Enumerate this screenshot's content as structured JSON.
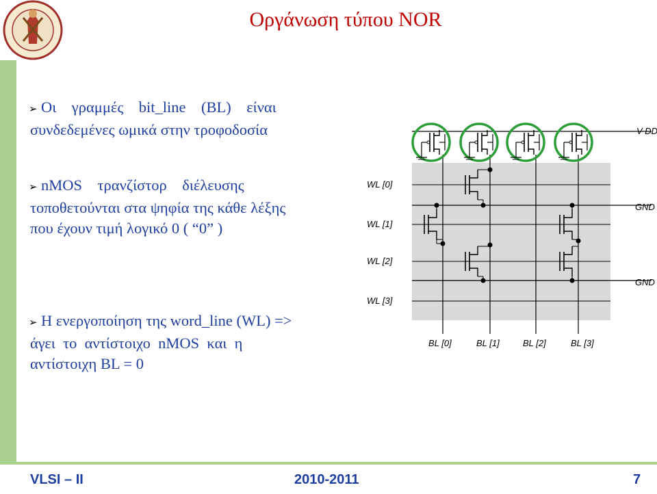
{
  "slide": {
    "title": "Οργάνωση τύπου NOR",
    "logo_text": "PANEPISTHMION PATRON · UNIVERSITY OF PATRAS"
  },
  "bullets": [
    {
      "lines": [
        "Οι    γραμμές    bit_line    (BL)    είναι",
        "συνδεδεμένες ωμικά στην τροφοδοσία"
      ]
    },
    {
      "lines": [
        "nMOS    τρανζίστορ    διέλευσης",
        "τοποθετούνται στα ψηφία της κάθε λέξης",
        "που έχουν τιμή λογικό 0 ( “0” )"
      ]
    },
    {
      "lines": [
        "Η ενεργοποίηση της word_line (WL) =>",
        "άγει  το  αντίστοιχο  nMOS  και  η",
        "αντίστοιχη BL = 0"
      ]
    }
  ],
  "diagram": {
    "vdd_label": "V DD",
    "gnd_labels": [
      "GND",
      "GND"
    ],
    "wl_labels": [
      "WL [0]",
      "WL [1]",
      "WL [2]",
      "WL [3]"
    ],
    "bl_labels": [
      "BL [0]",
      "BL [1]",
      "BL [2]",
      "BL [3]"
    ],
    "colors": {
      "highlight": "#2e9e3a",
      "array_bg": "#d9d9d9",
      "wire": "#000000"
    }
  },
  "footer": {
    "left": "VLSI – II",
    "center": "2010-2011",
    "page": "7"
  }
}
